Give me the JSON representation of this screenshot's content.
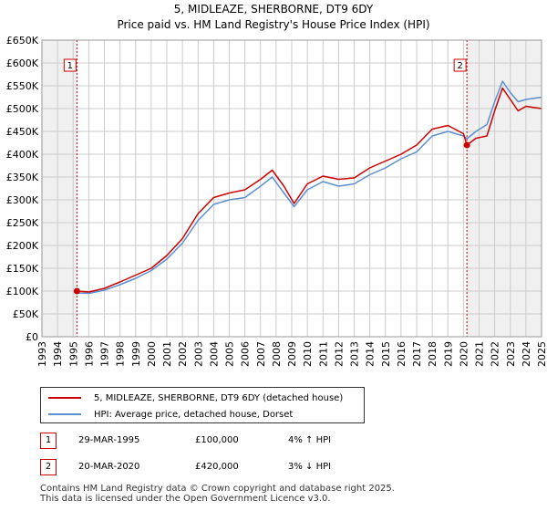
{
  "chart_data": {
    "type": "line",
    "title": "5, MIDLEAZE, SHERBORNE, DT9 6DY",
    "subtitle": "Price paid vs. HM Land Registry's House Price Index (HPI)",
    "xlabel": "",
    "ylabel": "",
    "xlim": [
      1993,
      2025
    ],
    "ylim": [
      0,
      650000
    ],
    "x_ticks": [
      1993,
      1994,
      1995,
      1996,
      1997,
      1998,
      1999,
      2000,
      2001,
      2002,
      2003,
      2004,
      2005,
      2006,
      2007,
      2008,
      2009,
      2010,
      2011,
      2012,
      2013,
      2014,
      2015,
      2016,
      2017,
      2018,
      2019,
      2020,
      2021,
      2022,
      2023,
      2024,
      2025
    ],
    "y_ticks": [
      {
        "value": 0,
        "label": "£0"
      },
      {
        "value": 50000,
        "label": "£50K"
      },
      {
        "value": 100000,
        "label": "£100K"
      },
      {
        "value": 150000,
        "label": "£150K"
      },
      {
        "value": 200000,
        "label": "£200K"
      },
      {
        "value": 250000,
        "label": "£250K"
      },
      {
        "value": 300000,
        "label": "£300K"
      },
      {
        "value": 350000,
        "label": "£350K"
      },
      {
        "value": 400000,
        "label": "£400K"
      },
      {
        "value": 450000,
        "label": "£450K"
      },
      {
        "value": 500000,
        "label": "£500K"
      },
      {
        "value": 550000,
        "label": "£550K"
      },
      {
        "value": 600000,
        "label": "£600K"
      },
      {
        "value": 650000,
        "label": "£650K"
      }
    ],
    "grid": true,
    "shaded_regions": [
      [
        1993,
        1995.24
      ],
      [
        2020.22,
        2025
      ]
    ],
    "series": [
      {
        "name": "5, MIDLEAZE, SHERBORNE, DT9 6DY (detached house)",
        "color": "#cc0000",
        "x": [
          1995.24,
          1996,
          1997,
          1998,
          1999,
          2000,
          2001,
          2002,
          2003,
          2004,
          2005,
          2006,
          2007,
          2007.75,
          2008.5,
          2009.15,
          2010,
          2011,
          2012,
          2013,
          2014,
          2015,
          2016,
          2017,
          2018,
          2019,
          2020,
          2020.22,
          2020.8,
          2021.5,
          2022,
          2022.5,
          2023,
          2023.5,
          2024,
          2025
        ],
        "values": [
          100000,
          98000,
          106000,
          120000,
          135000,
          150000,
          178000,
          215000,
          270000,
          305000,
          315000,
          322000,
          345000,
          365000,
          330000,
          292000,
          335000,
          352000,
          345000,
          348000,
          370000,
          385000,
          400000,
          420000,
          455000,
          463000,
          445000,
          420000,
          435000,
          440000,
          495000,
          545000,
          520000,
          495000,
          505000,
          500000
        ]
      },
      {
        "name": "HPI: Average price, detached house, Dorset",
        "color": "#5b8fd0",
        "x": [
          1995.24,
          1996,
          1997,
          1998,
          1999,
          2000,
          2001,
          2002,
          2003,
          2004,
          2005,
          2006,
          2007,
          2007.75,
          2008.5,
          2009.15,
          2010,
          2011,
          2012,
          2013,
          2014,
          2015,
          2016,
          2017,
          2018,
          2019,
          2020,
          2020.22,
          2020.8,
          2021.5,
          2022,
          2022.5,
          2023,
          2023.5,
          2024,
          2025
        ],
        "values": [
          96000,
          95000,
          102000,
          114000,
          128000,
          145000,
          170000,
          205000,
          255000,
          290000,
          300000,
          305000,
          330000,
          350000,
          315000,
          285000,
          322000,
          340000,
          330000,
          335000,
          355000,
          370000,
          390000,
          405000,
          440000,
          450000,
          440000,
          434000,
          450000,
          465000,
          515000,
          560000,
          535000,
          515000,
          520000,
          525000
        ]
      }
    ],
    "annotations": [
      {
        "id": "1",
        "x": 1995.24,
        "value": 100000,
        "label": "1"
      },
      {
        "id": "2",
        "x": 2020.22,
        "value": 420000,
        "label": "2"
      }
    ]
  },
  "legend": {
    "items": [
      {
        "label": "5, MIDLEAZE, SHERBORNE, DT9 6DY (detached house)",
        "color": "#cc0000"
      },
      {
        "label": "HPI: Average price, detached house, Dorset",
        "color": "#5b8fd0"
      }
    ]
  },
  "transactions": [
    {
      "marker": "1",
      "date": "29-MAR-1995",
      "price": "£100,000",
      "hpi": "4% ↑ HPI"
    },
    {
      "marker": "2",
      "date": "20-MAR-2020",
      "price": "£420,000",
      "hpi": "3% ↓ HPI"
    }
  ],
  "footer": {
    "line1": "Contains HM Land Registry data © Crown copyright and database right 2025.",
    "line2": "This data is licensed under the Open Government Licence v3.0."
  }
}
